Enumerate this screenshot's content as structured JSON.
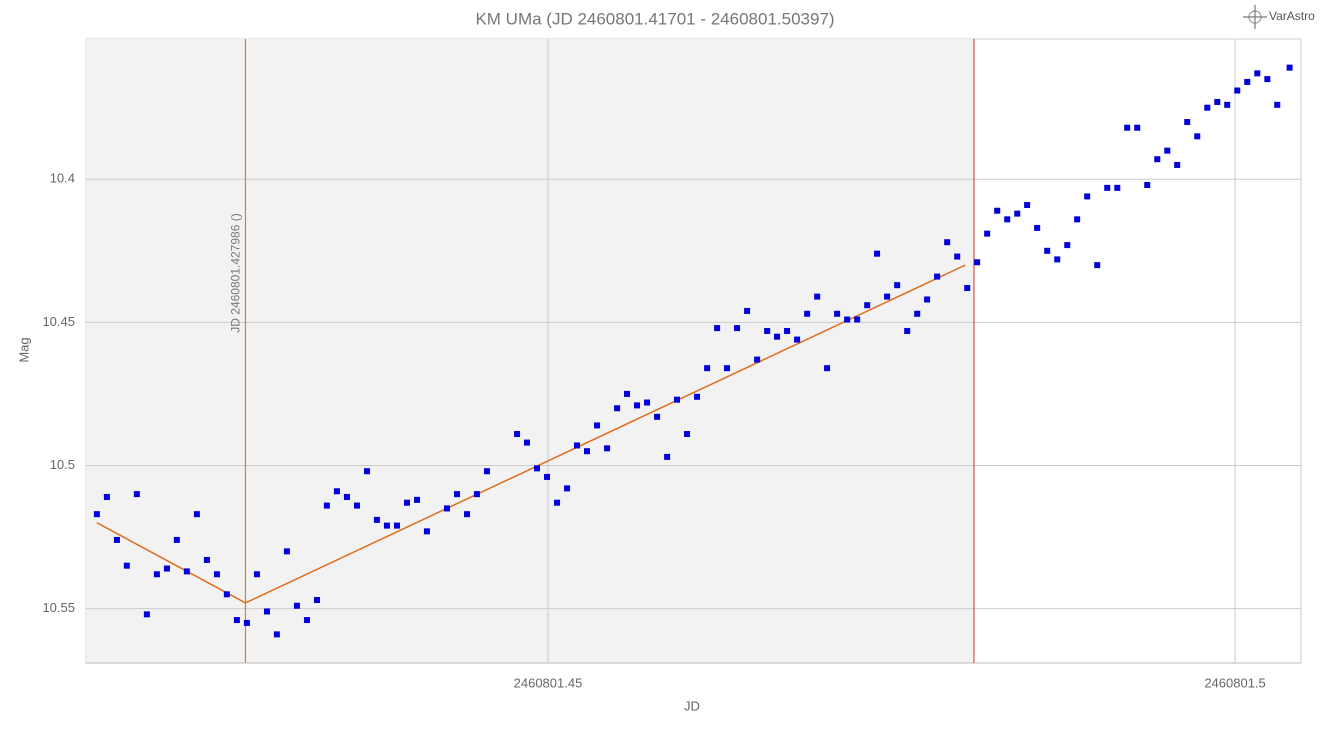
{
  "chart_data": {
    "type": "scatter",
    "title": "KM UMa (JD 2460801.41701 - 2460801.50397)",
    "logo": "VarAstro",
    "x_label": "JD",
    "y_label": "Mag",
    "xlim": [
      2460801.41638,
      2460801.5048
    ],
    "ylim": [
      10.351,
      10.569
    ],
    "y_inverted": true,
    "xticks": [
      2460801.45,
      2460801.5
    ],
    "yticks": [
      10.4,
      10.45,
      10.5,
      10.55
    ],
    "grid": true,
    "color": "#0000dd",
    "x": [
      2460801.41717,
      2460801.4179,
      2460801.41863,
      2460801.41935,
      2460801.42008,
      2460801.42081,
      2460801.42154,
      2460801.42227,
      2460801.42299,
      2460801.42372,
      2460801.42445,
      2460801.42518,
      2460801.42591,
      2460801.42663,
      2460801.42736,
      2460801.42809,
      2460801.42882,
      2460801.42955,
      2460801.43027,
      2460801.431,
      2460801.43173,
      2460801.43246,
      2460801.43319,
      2460801.43391,
      2460801.43464,
      2460801.43537,
      2460801.4361,
      2460801.43683,
      2460801.43755,
      2460801.43828,
      2460801.43901,
      2460801.43974,
      2460801.44047,
      2460801.44119,
      2460801.44265,
      2460801.44338,
      2460801.44411,
      2460801.44483,
      2460801.44556,
      2460801.44775,
      2460801.44847,
      2460801.4492,
      2460801.44993,
      2460801.45066,
      2460801.45139,
      2460801.45211,
      2460801.45284,
      2460801.45357,
      2460801.4543,
      2460801.45503,
      2460801.45575,
      2460801.45648,
      2460801.45721,
      2460801.45794,
      2460801.45867,
      2460801.45939,
      2460801.46012,
      2460801.46085,
      2460801.46158,
      2460801.46231,
      2460801.46303,
      2460801.46376,
      2460801.46449,
      2460801.46522,
      2460801.46595,
      2460801.46667,
      2460801.4674,
      2460801.46813,
      2460801.46886,
      2460801.46959,
      2460801.47031,
      2460801.47104,
      2460801.47177,
      2460801.4725,
      2460801.47323,
      2460801.47395,
      2460801.47468,
      2460801.47541,
      2460801.47614,
      2460801.47687,
      2460801.47759,
      2460801.47832,
      2460801.47905,
      2460801.47978,
      2460801.48051,
      2460801.48123,
      2460801.48196,
      2460801.48269,
      2460801.48342,
      2460801.48415,
      2460801.48487,
      2460801.4856,
      2460801.48633,
      2460801.48706,
      2460801.48779,
      2460801.48851,
      2460801.48924,
      2460801.48997,
      2460801.4907,
      2460801.49143,
      2460801.49215,
      2460801.49288,
      2460801.49361,
      2460801.49434,
      2460801.49507,
      2460801.49579,
      2460801.49652,
      2460801.49725,
      2460801.49798,
      2460801.49871,
      2460801.49943,
      2460801.50016,
      2460801.50089,
      2460801.50162,
      2460801.50235,
      2460801.50307,
      2460801.50397
    ],
    "values": [
      10.517,
      10.511,
      10.526,
      10.535,
      10.51,
      10.552,
      10.538,
      10.536,
      10.526,
      10.537,
      10.517,
      10.533,
      10.538,
      10.545,
      10.554,
      10.555,
      10.538,
      10.551,
      10.559,
      10.53,
      10.549,
      10.554,
      10.547,
      10.514,
      10.509,
      10.511,
      10.514,
      10.502,
      10.519,
      10.521,
      10.521,
      10.513,
      10.512,
      10.523,
      10.515,
      10.51,
      10.517,
      10.51,
      10.502,
      10.489,
      10.492,
      10.501,
      10.504,
      10.513,
      10.508,
      10.493,
      10.495,
      10.486,
      10.494,
      10.48,
      10.475,
      10.479,
      10.478,
      10.483,
      10.497,
      10.477,
      10.489,
      10.476,
      10.466,
      10.452,
      10.466,
      10.452,
      10.446,
      10.463,
      10.453,
      10.455,
      10.453,
      10.456,
      10.447,
      10.441,
      10.466,
      10.447,
      10.449,
      10.449,
      10.444,
      10.426,
      10.441,
      10.437,
      10.453,
      10.447,
      10.442,
      10.434,
      10.422,
      10.427,
      10.438,
      10.429,
      10.419,
      10.411,
      10.414,
      10.412,
      10.409,
      10.417,
      10.425,
      10.428,
      10.423,
      10.414,
      10.406,
      10.43,
      10.403,
      10.403,
      10.382,
      10.382,
      10.402,
      10.393,
      10.39,
      10.395,
      10.38,
      10.385,
      10.375,
      10.373,
      10.374,
      10.369,
      10.366,
      10.363,
      10.365,
      10.374,
      10.361
    ],
    "fit": {
      "color": "#e06c1a",
      "x": [
        2460801.41717,
        2460801.427986,
        2460801.48036
      ],
      "values": [
        10.52,
        10.548,
        10.43
      ]
    },
    "vertical_lines": [
      {
        "x": 2460801.427986,
        "label": "JD 2460801.427986 ()",
        "color": "#e07a30"
      },
      {
        "x": 2460801.481,
        "color": "#d9534f"
      }
    ]
  }
}
